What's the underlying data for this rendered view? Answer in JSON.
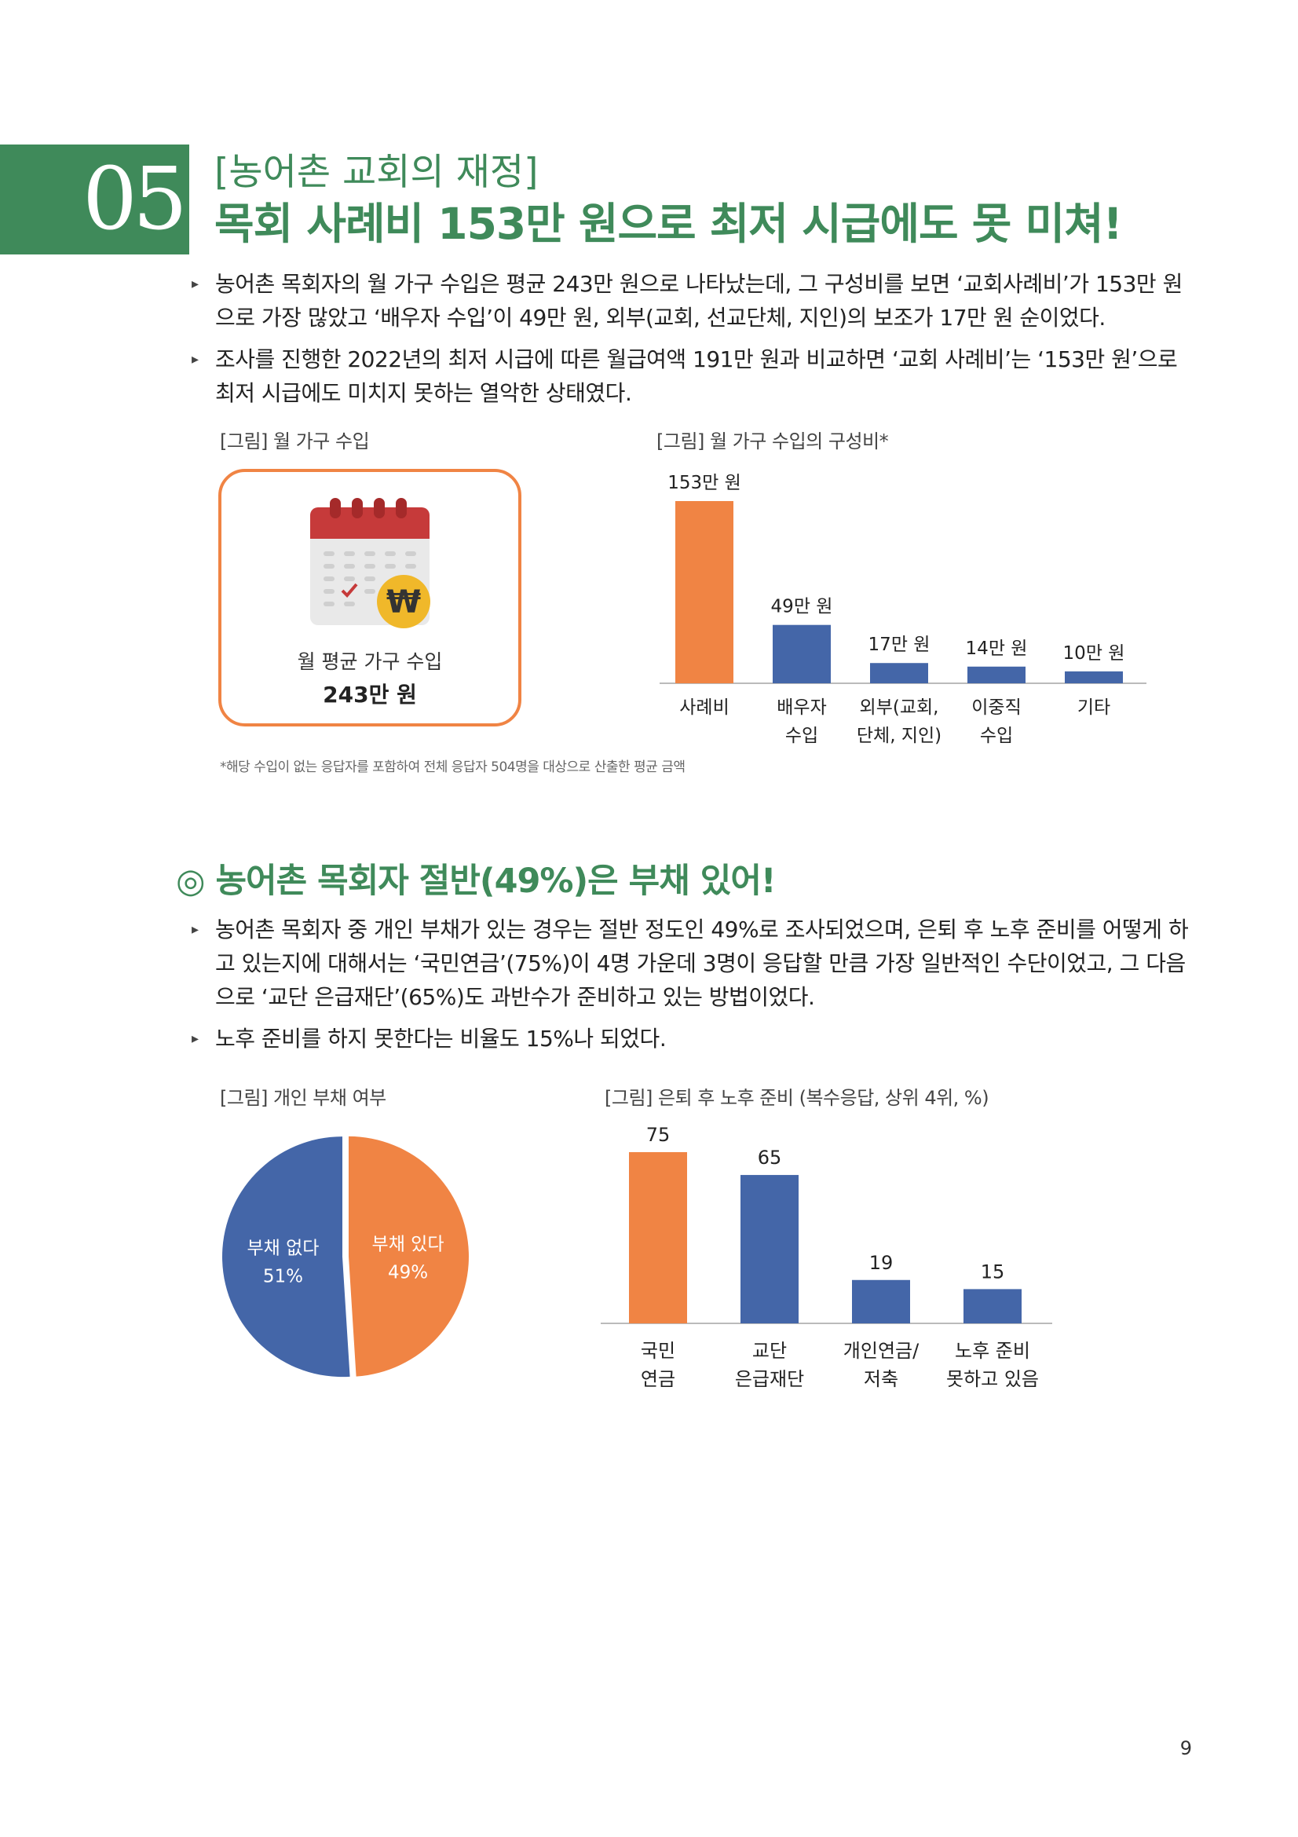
{
  "header": {
    "number": "05",
    "subtitle": "[농어촌 교회의 재정]",
    "title": "목회 사례비 153만 원으로 최저 시급에도 못 미쳐!"
  },
  "section1": {
    "bullets": [
      "농어촌 목회자의 월 가구 수입은 평균 243만 원으로 나타났는데, 그 구성비를 보면 ‘교회사례비’가 153만 원으로 가장 많았고 ‘배우자 수입’이 49만 원, 외부(교회, 선교단체, 지인)의 보조가 17만 원 순이었다.",
      "조사를 진행한 2022년의 최저 시급에 따른 월급여액 191만 원과 비교하면 ‘교회 사례비’는 ‘153만 원’으로 최저 시급에도 미치지 못하는 열악한 상태였다."
    ],
    "fig1_caption": "[그림] 월 가구 수입",
    "fig2_caption": "[그림] 월 가구 수입의 구성비*",
    "income_label": "월 평균 가구 수입",
    "income_value": "243만 원",
    "footnote": "*해당 수입이 없는 응답자를 포함하여 전체 응답자 504명을 대상으로 산출한 평균 금액"
  },
  "section2": {
    "title": "◎ 농어촌 목회자 절반(49%)은 부채 있어!",
    "bullets": [
      "농어촌 목회자 중 개인 부채가 있는 경우는 절반 정도인 49%로 조사되었으며, 은퇴 후 노후 준비를 어떻게 하고 있는지에 대해서는 ‘국민연금’(75%)이 4명 가운데 3명이 응답할 만큼 가장 일반적인 수단이었고, 그 다음으로 ‘교단 은급재단’(65%)도 과반수가 준비하고 있는 방법이었다.",
      "노후 준비를 하지 못한다는 비율도 15%나 되었다."
    ],
    "fig3_caption": "[그림] 개인 부채 여부",
    "fig4_caption": "[그림] 은퇴 후 노후 준비 (복수응답, 상위 4위, %)"
  },
  "page_number": "9",
  "colors": {
    "green": "#3f8a5a",
    "orange": "#f08444",
    "blue": "#4466a8"
  },
  "icons": [
    "calendar-won-icon"
  ],
  "chart_data": [
    {
      "type": "bar",
      "categories": [
        [
          "사례비"
        ],
        [
          "배우자",
          "수입"
        ],
        [
          "외부(교회,",
          "단체, 지인)"
        ],
        [
          "이중직",
          "수입"
        ],
        [
          "기타"
        ]
      ],
      "values": [
        153,
        49,
        17,
        14,
        10
      ],
      "value_labels": [
        "153만 원",
        "49만 원",
        "17만 원",
        "14만 원",
        "10만 원"
      ],
      "unit": "만 원",
      "ylim": [
        0,
        153
      ],
      "bar_colors": [
        "#f08444",
        "#4466a8",
        "#4466a8",
        "#4466a8",
        "#4466a8"
      ]
    },
    {
      "type": "pie",
      "slices": [
        {
          "label": "부채 있다",
          "value": 49,
          "value_label": "49%",
          "color": "#f08444"
        },
        {
          "label": "부채 없다",
          "value": 51,
          "value_label": "51%",
          "color": "#4466a8"
        }
      ]
    },
    {
      "type": "bar",
      "categories": [
        [
          "국민",
          "연금"
        ],
        [
          "교단",
          "은급재단"
        ],
        [
          "개인연금/",
          "저축"
        ],
        [
          "노후 준비",
          "못하고 있음"
        ]
      ],
      "values": [
        75,
        65,
        19,
        15
      ],
      "value_labels": [
        "75",
        "65",
        "19",
        "15"
      ],
      "ylim": [
        0,
        75
      ],
      "bar_colors": [
        "#f08444",
        "#4466a8",
        "#4466a8",
        "#4466a8"
      ]
    }
  ]
}
